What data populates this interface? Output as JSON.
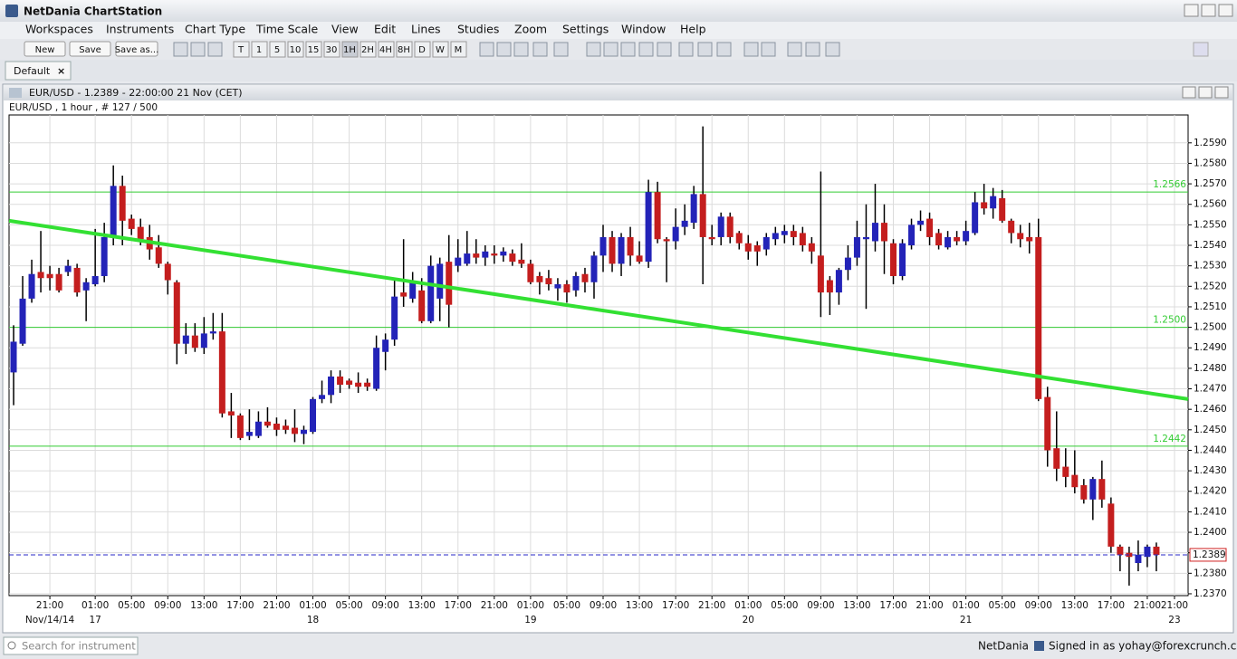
{
  "window_title": "NetDania ChartStation",
  "menu": [
    "Workspaces",
    "Instruments",
    "Chart Type",
    "Time Scale",
    "View",
    "Edit",
    "Lines",
    "Studies",
    "Zoom",
    "Settings",
    "Window",
    "Help"
  ],
  "toolbar": {
    "file_buttons": [
      "New",
      "Save",
      "Save as..."
    ],
    "timeframes": [
      "T",
      "1",
      "5",
      "10",
      "15",
      "30",
      "1H",
      "2H",
      "4H",
      "8H",
      "D",
      "W",
      "M"
    ]
  },
  "tab": "Default",
  "chart_window_title": "EUR/USD - 1.2389 - 22:00:00  21 Nov (CET)",
  "status": {
    "search_placeholder": "Search for instrument",
    "brand": "NetDania",
    "signed_in": "Signed in as yohay@forexcrunch.com"
  },
  "chart_data": {
    "type": "candlestick",
    "title": "EUR/USD , 1 hour , # 127 / 500",
    "up_color": "#2323b8",
    "down_color": "#c41e1e",
    "wick_color": "#000000",
    "grid": true,
    "open": [
      1.2478,
      1.2492,
      1.2514,
      1.2527,
      1.2526,
      1.2526,
      1.2527,
      1.2529,
      1.2518,
      1.2521,
      1.2525,
      1.2544,
      1.2569,
      1.2553,
      1.2549,
      1.2544,
      1.2539,
      1.2531,
      1.2522,
      1.2492,
      1.2496,
      1.249,
      1.2497,
      1.2498,
      1.2459,
      1.2457,
      1.2447,
      1.2447,
      1.2454,
      1.2453,
      1.2452,
      1.2451,
      1.2448,
      1.2449,
      1.2465,
      1.2467,
      1.2476,
      1.2474,
      1.2473,
      1.2473,
      1.247,
      1.2488,
      1.2494,
      1.2517,
      1.2514,
      1.2518,
      1.2503,
      1.2514,
      1.2532,
      1.253,
      1.2531,
      1.2536,
      1.2534,
      1.2536,
      1.2535,
      1.2536,
      1.2533,
      1.2531,
      1.2525,
      1.2524,
      1.2519,
      1.2521,
      1.2518,
      1.2526,
      1.2522,
      1.2535,
      1.2544,
      1.2531,
      1.2544,
      1.2535,
      1.2532,
      1.2566,
      1.2543,
      1.2542,
      1.2549,
      1.2551,
      1.2565,
      1.2544,
      1.2544,
      1.2554,
      1.2546,
      1.2541,
      1.254,
      1.2538,
      1.2543,
      1.2545,
      1.2547,
      1.2546,
      1.2541,
      1.2535,
      1.2523,
      1.2517,
      1.2528,
      1.2534,
      1.2543,
      1.2542,
      1.2551,
      1.2541,
      1.2525,
      1.254,
      1.255,
      1.2553,
      1.2546,
      1.2539,
      1.2544,
      1.2542,
      1.2546,
      1.2561,
      1.2558,
      1.2563,
      1.2552,
      1.2546,
      1.2544,
      1.2544,
      1.2466,
      1.2441,
      1.2432,
      1.2428,
      1.2423,
      1.2416,
      1.2426,
      1.2414,
      1.2393,
      1.239,
      1.2385,
      1.2388,
      1.2393
    ],
    "high": [
      1.2501,
      1.2525,
      1.2533,
      1.2547,
      1.253,
      1.2529,
      1.2533,
      1.2531,
      1.2524,
      1.2548,
      1.2551,
      1.2579,
      1.2574,
      1.2555,
      1.2553,
      1.255,
      1.2545,
      1.2532,
      1.2523,
      1.2502,
      1.2502,
      1.2505,
      1.2507,
      1.2507,
      1.2468,
      1.2458,
      1.246,
      1.2459,
      1.2461,
      1.2456,
      1.2455,
      1.246,
      1.2452,
      1.2466,
      1.2474,
      1.2479,
      1.2479,
      1.2475,
      1.2478,
      1.2475,
      1.2496,
      1.2497,
      1.2524,
      1.2543,
      1.2527,
      1.2524,
      1.2535,
      1.2534,
      1.2545,
      1.2543,
      1.2547,
      1.2543,
      1.254,
      1.254,
      1.2539,
      1.2538,
      1.2541,
      1.2533,
      1.2527,
      1.2528,
      1.2524,
      1.2523,
      1.2527,
      1.2529,
      1.2537,
      1.255,
      1.2547,
      1.2546,
      1.2549,
      1.2542,
      1.2572,
      1.2571,
      1.2544,
      1.2558,
      1.256,
      1.2569,
      1.2598,
      1.255,
      1.2556,
      1.2556,
      1.2547,
      1.2545,
      1.2542,
      1.2546,
      1.2549,
      1.255,
      1.255,
      1.2549,
      1.2544,
      1.2576,
      1.2525,
      1.2529,
      1.254,
      1.2552,
      1.256,
      1.257,
      1.256,
      1.2543,
      1.2543,
      1.2553,
      1.2557,
      1.2556,
      1.2548,
      1.2547,
      1.2547,
      1.2552,
      1.2566,
      1.257,
      1.2568,
      1.2567,
      1.2553,
      1.255,
      1.2551,
      1.2553,
      1.2471,
      1.2459,
      1.2441,
      1.244,
      1.2426,
      1.2427,
      1.2435,
      1.2417,
      1.2394,
      1.2393,
      1.2396,
      1.2394,
      1.2395
    ],
    "low": [
      1.2462,
      1.2491,
      1.2512,
      1.2517,
      1.2518,
      1.2517,
      1.2525,
      1.2515,
      1.2503,
      1.252,
      1.2522,
      1.254,
      1.254,
      1.2545,
      1.254,
      1.2533,
      1.2529,
      1.2516,
      1.2482,
      1.2487,
      1.2488,
      1.2487,
      1.2494,
      1.2456,
      1.2446,
      1.2445,
      1.2445,
      1.2446,
      1.2451,
      1.2447,
      1.2448,
      1.2444,
      1.2443,
      1.2448,
      1.2463,
      1.2463,
      1.2468,
      1.247,
      1.2468,
      1.2469,
      1.2469,
      1.2479,
      1.2491,
      1.251,
      1.2512,
      1.2502,
      1.2502,
      1.2503,
      1.25,
      1.2527,
      1.253,
      1.2531,
      1.253,
      1.2531,
      1.2532,
      1.253,
      1.2529,
      1.2521,
      1.2516,
      1.2518,
      1.2513,
      1.2512,
      1.2515,
      1.2517,
      1.2514,
      1.2527,
      1.2527,
      1.2525,
      1.253,
      1.2531,
      1.2529,
      1.2541,
      1.2522,
      1.2538,
      1.2545,
      1.2548,
      1.2521,
      1.254,
      1.254,
      1.2541,
      1.2538,
      1.2533,
      1.253,
      1.2535,
      1.254,
      1.2541,
      1.254,
      1.2537,
      1.2531,
      1.2505,
      1.2506,
      1.2511,
      1.2523,
      1.253,
      1.2509,
      1.2537,
      1.2526,
      1.2521,
      1.2523,
      1.2538,
      1.2547,
      1.254,
      1.2538,
      1.2538,
      1.254,
      1.254,
      1.2545,
      1.2555,
      1.2553,
      1.2551,
      1.2541,
      1.2539,
      1.2536,
      1.2464,
      1.2432,
      1.2425,
      1.2422,
      1.2419,
      1.2414,
      1.2406,
      1.2412,
      1.239,
      1.2381,
      1.2374,
      1.2381,
      1.2383,
      1.2381
    ],
    "close": [
      1.2493,
      1.2514,
      1.2526,
      1.2524,
      1.2524,
      1.2518,
      1.253,
      1.2517,
      1.2522,
      1.2525,
      1.2544,
      1.2569,
      1.2552,
      1.2548,
      1.2543,
      1.2538,
      1.2531,
      1.2523,
      1.2492,
      1.2496,
      1.249,
      1.2497,
      1.2498,
      1.2458,
      1.2457,
      1.2446,
      1.2449,
      1.2454,
      1.2452,
      1.245,
      1.245,
      1.2448,
      1.245,
      1.2465,
      1.2467,
      1.2476,
      1.2472,
      1.2472,
      1.2471,
      1.2471,
      1.249,
      1.2494,
      1.2515,
      1.2515,
      1.2522,
      1.2503,
      1.253,
      1.2531,
      1.2511,
      1.2534,
      1.2536,
      1.2534,
      1.2537,
      1.2535,
      1.2537,
      1.2532,
      1.2531,
      1.2522,
      1.2522,
      1.2521,
      1.2521,
      1.2517,
      1.2525,
      1.2522,
      1.2535,
      1.2544,
      1.2531,
      1.2544,
      1.2535,
      1.2532,
      1.2566,
      1.2543,
      1.2542,
      1.2549,
      1.2552,
      1.2565,
      1.2544,
      1.2543,
      1.2554,
      1.2544,
      1.2541,
      1.2537,
      1.2537,
      1.2544,
      1.2546,
      1.2547,
      1.2544,
      1.254,
      1.2537,
      1.2517,
      1.2517,
      1.2528,
      1.2534,
      1.2544,
      1.2544,
      1.2551,
      1.2542,
      1.2525,
      1.2541,
      1.255,
      1.2552,
      1.2544,
      1.254,
      1.2544,
      1.2542,
      1.2547,
      1.2561,
      1.2558,
      1.2564,
      1.2552,
      1.2546,
      1.2543,
      1.2542,
      1.2465,
      1.244,
      1.2431,
      1.2427,
      1.2422,
      1.2416,
      1.2426,
      1.2416,
      1.2393,
      1.2389,
      1.2388,
      1.2389,
      1.2393,
      1.2389
    ],
    "xlim": [
      -0.5,
      129.5
    ],
    "ylim": [
      1.23691,
      1.26036
    ],
    "xticks": [
      {
        "value": 4,
        "label": "21:00"
      },
      {
        "value": 9,
        "label": "01:00"
      },
      {
        "value": 13,
        "label": "05:00"
      },
      {
        "value": 17,
        "label": "09:00"
      },
      {
        "value": 21,
        "label": "13:00"
      },
      {
        "value": 25,
        "label": "17:00"
      },
      {
        "value": 29,
        "label": "21:00"
      },
      {
        "value": 33,
        "label": "01:00"
      },
      {
        "value": 37,
        "label": "05:00"
      },
      {
        "value": 41,
        "label": "09:00"
      },
      {
        "value": 45,
        "label": "13:00"
      },
      {
        "value": 49,
        "label": "17:00"
      },
      {
        "value": 53,
        "label": "21:00"
      },
      {
        "value": 57,
        "label": "01:00"
      },
      {
        "value": 61,
        "label": "05:00"
      },
      {
        "value": 65,
        "label": "09:00"
      },
      {
        "value": 69,
        "label": "13:00"
      },
      {
        "value": 73,
        "label": "17:00"
      },
      {
        "value": 77,
        "label": "21:00"
      },
      {
        "value": 81,
        "label": "01:00"
      },
      {
        "value": 85,
        "label": "05:00"
      },
      {
        "value": 89,
        "label": "09:00"
      },
      {
        "value": 93,
        "label": "13:00"
      },
      {
        "value": 97,
        "label": "17:00"
      },
      {
        "value": 101,
        "label": "21:00"
      },
      {
        "value": 105,
        "label": "01:00"
      },
      {
        "value": 109,
        "label": "05:00"
      },
      {
        "value": 113,
        "label": "09:00"
      },
      {
        "value": 117,
        "label": "13:00"
      },
      {
        "value": 121,
        "label": "17:00"
      },
      {
        "value": 125,
        "label": "21:00"
      },
      {
        "value": 128,
        "label": "21:00"
      }
    ],
    "x_date_labels": [
      {
        "value": 4,
        "label": "Nov/14/14"
      },
      {
        "value": 9,
        "label": "17"
      },
      {
        "value": 33,
        "label": "18"
      },
      {
        "value": 57,
        "label": "19"
      },
      {
        "value": 81,
        "label": "20"
      },
      {
        "value": 105,
        "label": "21"
      },
      {
        "value": 128,
        "label": "23"
      }
    ],
    "yticks": [
      {
        "value": 1.237,
        "label": "1.2370"
      },
      {
        "value": 1.238,
        "label": "1.2380"
      },
      {
        "value": 1.239,
        "label": "1.2390"
      },
      {
        "value": 1.24,
        "label": "1.2400"
      },
      {
        "value": 1.241,
        "label": "1.2410"
      },
      {
        "value": 1.242,
        "label": "1.2420"
      },
      {
        "value": 1.243,
        "label": "1.2430"
      },
      {
        "value": 1.244,
        "label": "1.2440"
      },
      {
        "value": 1.245,
        "label": "1.2450"
      },
      {
        "value": 1.246,
        "label": "1.2460"
      },
      {
        "value": 1.247,
        "label": "1.2470"
      },
      {
        "value": 1.248,
        "label": "1.2480"
      },
      {
        "value": 1.249,
        "label": "1.2490"
      },
      {
        "value": 1.25,
        "label": "1.2500"
      },
      {
        "value": 1.251,
        "label": "1.2510"
      },
      {
        "value": 1.252,
        "label": "1.2520"
      },
      {
        "value": 1.253,
        "label": "1.2530"
      },
      {
        "value": 1.254,
        "label": "1.2540"
      },
      {
        "value": 1.255,
        "label": "1.2550"
      },
      {
        "value": 1.256,
        "label": "1.2560"
      },
      {
        "value": 1.257,
        "label": "1.2570"
      },
      {
        "value": 1.258,
        "label": "1.2580"
      },
      {
        "value": 1.259,
        "label": "1.2590"
      }
    ],
    "levels": [
      {
        "value": 1.2566,
        "label": "1.2566"
      },
      {
        "value": 1.25,
        "label": "1.2500"
      },
      {
        "value": 1.2442,
        "label": "1.2442"
      }
    ],
    "level_color": "#33cc33",
    "trendline": {
      "x": [
        -0.5,
        129.5
      ],
      "y": [
        1.2552,
        1.2465
      ],
      "color": "#33e033"
    },
    "last_price": {
      "value": 1.2389,
      "label": "1.2389",
      "color": "#2a2ac8"
    }
  }
}
